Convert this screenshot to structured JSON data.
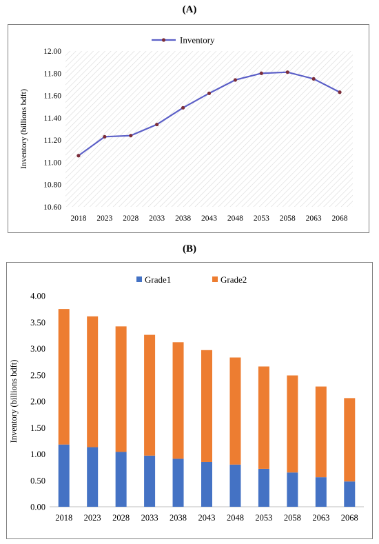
{
  "panels": {
    "a_label": "(A)",
    "b_label": "(B)"
  },
  "chart_data": [
    {
      "type": "line",
      "title": "",
      "xlabel": "",
      "ylabel": "Inventory (billions bdft)",
      "categories": [
        "2018",
        "2023",
        "2028",
        "2033",
        "2038",
        "2043",
        "2048",
        "2053",
        "2058",
        "2063",
        "2068"
      ],
      "series": [
        {
          "name": "Inventory",
          "values": [
            11.06,
            11.23,
            11.24,
            11.34,
            11.49,
            11.62,
            11.74,
            11.8,
            11.81,
            11.75,
            11.63
          ],
          "color": "#5b5fc7",
          "marker_color": "#7b2d3a"
        }
      ],
      "ylim": [
        10.6,
        12.0
      ],
      "yticks": [
        "10.60",
        "10.80",
        "11.00",
        "11.20",
        "11.40",
        "11.60",
        "11.80",
        "12.00"
      ],
      "yticks_values": [
        10.6,
        10.8,
        11.0,
        11.2,
        11.4,
        11.6,
        11.8,
        12.0
      ],
      "grid": false,
      "background": "hatched",
      "legend": "top-center"
    },
    {
      "type": "bar",
      "stacked": true,
      "title": "",
      "xlabel": "",
      "ylabel": "Inventory (billions bdft)",
      "categories": [
        "2018",
        "2023",
        "2028",
        "2033",
        "2038",
        "2043",
        "2048",
        "2053",
        "2058",
        "2063",
        "2068"
      ],
      "series": [
        {
          "name": "Grade1",
          "color": "#4472c4",
          "values": [
            1.18,
            1.13,
            1.04,
            0.97,
            0.91,
            0.85,
            0.8,
            0.72,
            0.65,
            0.56,
            0.48
          ]
        },
        {
          "name": "Grade2",
          "color": "#ed7d31",
          "values": [
            2.57,
            2.48,
            2.38,
            2.29,
            2.21,
            2.12,
            2.03,
            1.94,
            1.84,
            1.72,
            1.58
          ]
        }
      ],
      "ylim": [
        0,
        4.0
      ],
      "yticks": [
        "0.00",
        "0.50",
        "1.00",
        "1.50",
        "2.00",
        "2.50",
        "3.00",
        "3.50",
        "4.00"
      ],
      "yticks_values": [
        0,
        0.5,
        1.0,
        1.5,
        2.0,
        2.5,
        3.0,
        3.5,
        4.0
      ],
      "grid": false,
      "legend": "top-center"
    }
  ]
}
